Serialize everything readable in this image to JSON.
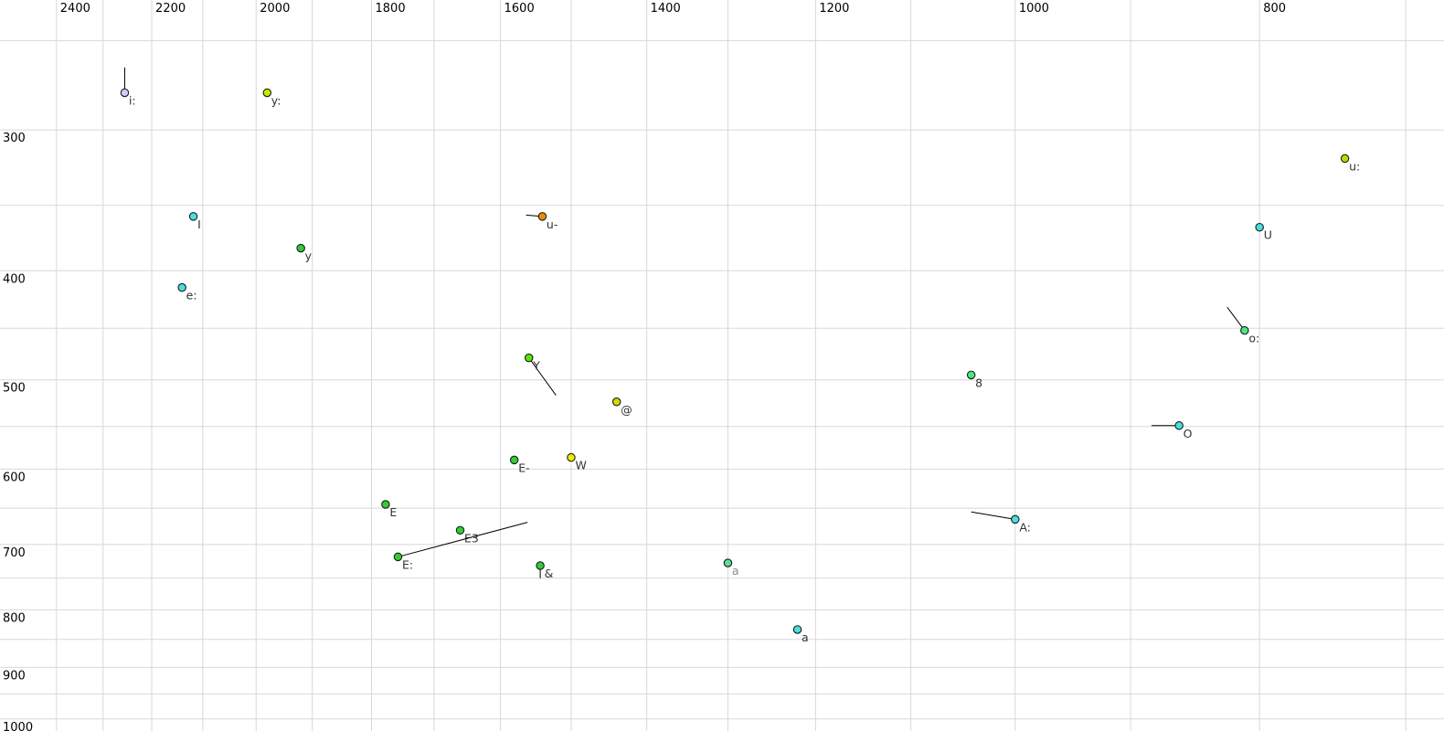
{
  "chart_data": {
    "type": "scatter",
    "title": "",
    "grid": true,
    "legend": false,
    "x_axis": {
      "unit": "Hz",
      "position": "top",
      "scale": "log",
      "reversed": true,
      "range": [
        2527,
        676
      ],
      "tick_labels": [
        2400,
        2200,
        2000,
        1800,
        1600,
        1400,
        1200,
        1000,
        800
      ],
      "gridlines": [
        2400,
        2300,
        2200,
        2100,
        2000,
        1900,
        1800,
        1700,
        1600,
        1500,
        1400,
        1300,
        1200,
        1100,
        1000,
        900,
        800,
        700
      ]
    },
    "y_axis": {
      "unit": "Hz",
      "position": "left",
      "scale": "log",
      "direction": "down",
      "range": [
        230,
        1025
      ],
      "tick_labels": [
        300,
        400,
        500,
        600,
        700,
        800,
        900,
        1000
      ],
      "gridlines": [
        250,
        300,
        350,
        400,
        450,
        500,
        550,
        600,
        650,
        700,
        750,
        800,
        850,
        900,
        950,
        1000
      ]
    },
    "points": [
      {
        "label": "i:",
        "f2": 2255,
        "f1": 278,
        "fill": "#ccccff",
        "tail": {
          "f2": 2255,
          "f1": 264
        }
      },
      {
        "label": "y:",
        "f2": 1980,
        "f1": 278,
        "fill": "#c8e800"
      },
      {
        "label": "I",
        "f2": 2118,
        "f1": 358,
        "fill": "#48dfdc"
      },
      {
        "label": "y",
        "f2": 1920,
        "f1": 382,
        "fill": "#33cc33"
      },
      {
        "label": "e:",
        "f2": 2140,
        "f1": 414,
        "fill": "#48dfdc"
      },
      {
        "label": "u-",
        "f2": 1540,
        "f1": 358,
        "fill": "#ef8a00",
        "tail": {
          "f2": 1563,
          "f1": 357
        }
      },
      {
        "label": "u:",
        "f2": 740,
        "f1": 318,
        "fill": "#abe000"
      },
      {
        "label": "U",
        "f2": 800,
        "f1": 366,
        "fill": "#48dfdc"
      },
      {
        "label": "o:",
        "f2": 811,
        "f1": 452,
        "fill": "#4be87c",
        "tail": {
          "f2": 824,
          "f1": 431
        }
      },
      {
        "label": "8",
        "f2": 1041,
        "f1": 495,
        "fill": "#4be87c"
      },
      {
        "label": "Y",
        "f2": 1559,
        "f1": 478,
        "fill": "#55e800",
        "tail": {
          "f2": 1521,
          "f1": 516
        }
      },
      {
        "label": "@",
        "f2": 1439,
        "f1": 523,
        "fill": "#d8d800"
      },
      {
        "label": "O",
        "f2": 861,
        "f1": 549,
        "fill": "#48dfdc",
        "tail": {
          "f2": 883,
          "f1": 549
        }
      },
      {
        "label": "E-",
        "f2": 1580,
        "f1": 589,
        "fill": "#33cc33"
      },
      {
        "label": "W",
        "f2": 1500,
        "f1": 586,
        "fill": "#f0ec00"
      },
      {
        "label": "E",
        "f2": 1777,
        "f1": 645,
        "fill": "#33cc33"
      },
      {
        "label": "A:",
        "f2": 1000,
        "f1": 665,
        "fill": "#48dfdc",
        "tail": {
          "f2": 1041,
          "f1": 655
        }
      },
      {
        "label": "E3",
        "f2": 1660,
        "f1": 680,
        "fill": "#33cc33"
      },
      {
        "label": "E:",
        "f2": 1757,
        "f1": 718,
        "fill": "#33cc33",
        "tail": {
          "f2": 1561,
          "f1": 669
        }
      },
      {
        "label": "&",
        "f2": 1543,
        "f1": 731,
        "fill": "#33cc33",
        "tail": {
          "f2": 1543,
          "f1": 750
        }
      },
      {
        "label": "a",
        "f2": 1300,
        "f1": 727,
        "fill": "#5cdca0",
        "label_color": "#8a8a8a"
      },
      {
        "label": "a",
        "f2": 1220,
        "f1": 833,
        "fill": "#48dfdc"
      }
    ]
  },
  "style": {
    "background": "#ffffff",
    "gridline_color": "#d8d8d8",
    "tick_label_color": "#000000",
    "point_label_color": "#333333",
    "point_stroke_color": "#1b1b1b",
    "tail_line_color": "#000000"
  }
}
